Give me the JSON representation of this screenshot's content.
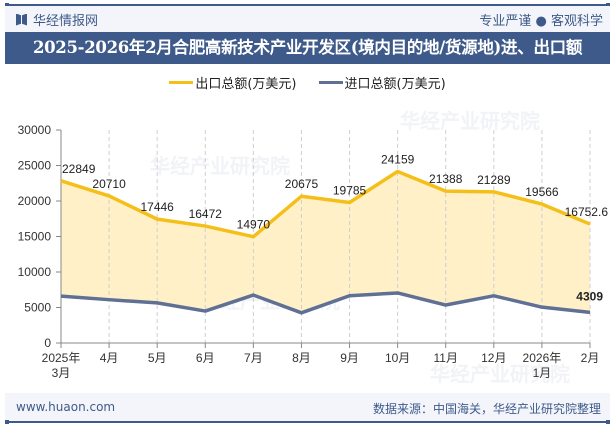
{
  "header": {
    "brand": "华经情报网",
    "slogan": "专业严谨 ● 客观科学",
    "title": "2025-2026年2月合肥高新技术产业开发区(境内目的地/货源地)进、出口额"
  },
  "legend": [
    {
      "label": "出口总额(万美元)",
      "color": "#f5bf1a"
    },
    {
      "label": "进口总额(万美元)",
      "color": "#5f7094"
    }
  ],
  "footer": {
    "website": "www.huaon.com",
    "source": "数据来源：中国海关，华经产业研究院整理"
  },
  "watermark": "华经产业研究院",
  "chart_data": {
    "type": "area",
    "title": "2025-2026年2月合肥高新技术产业开发区(境内目的地/货源地)进、出口额",
    "xlabel": "",
    "ylabel": "",
    "ylim": [
      0,
      30000
    ],
    "yticks": [
      0,
      5000,
      10000,
      15000,
      20000,
      25000,
      30000
    ],
    "categories": [
      "2025年\n3月",
      "4月",
      "5月",
      "6月",
      "7月",
      "8月",
      "9月",
      "10月",
      "11月",
      "12月",
      "2026年\n1月",
      "2月"
    ],
    "series": [
      {
        "name": "出口总额(万美元)",
        "color": "#f5bf1a",
        "fill": "#fff0c8",
        "values": [
          22849,
          20710,
          17446,
          16472,
          14970,
          20675,
          19785,
          24159,
          21388,
          21289,
          19566,
          16752.6
        ],
        "labels": [
          "22849",
          "20710",
          "17446",
          "16472",
          "14970",
          "20675",
          "19785",
          "24159",
          "21388",
          "21289",
          "19566",
          "16752.6"
        ]
      },
      {
        "name": "进口总额(万美元)",
        "color": "#5f7094",
        "values": [
          6600,
          6100,
          5650,
          4500,
          6750,
          4250,
          6650,
          7050,
          5350,
          6650,
          5050,
          4309
        ],
        "labels": [
          "",
          "",
          "",
          "",
          "",
          "",
          "",
          "",
          "",
          "",
          "",
          "4309"
        ]
      }
    ],
    "grid": "vertical dashed",
    "legend_position": "top"
  }
}
